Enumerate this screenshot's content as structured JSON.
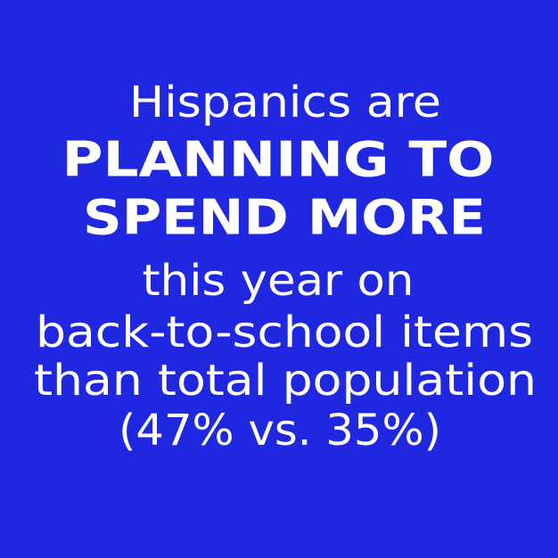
{
  "headline": {
    "intro": "Hispanics are",
    "emphasis": [
      "PLANNING TO",
      "SPEND MORE"
    ],
    "body": [
      "this year on",
      "back-to-school items",
      "than total population",
      "(47% vs. 35%)"
    ]
  }
}
